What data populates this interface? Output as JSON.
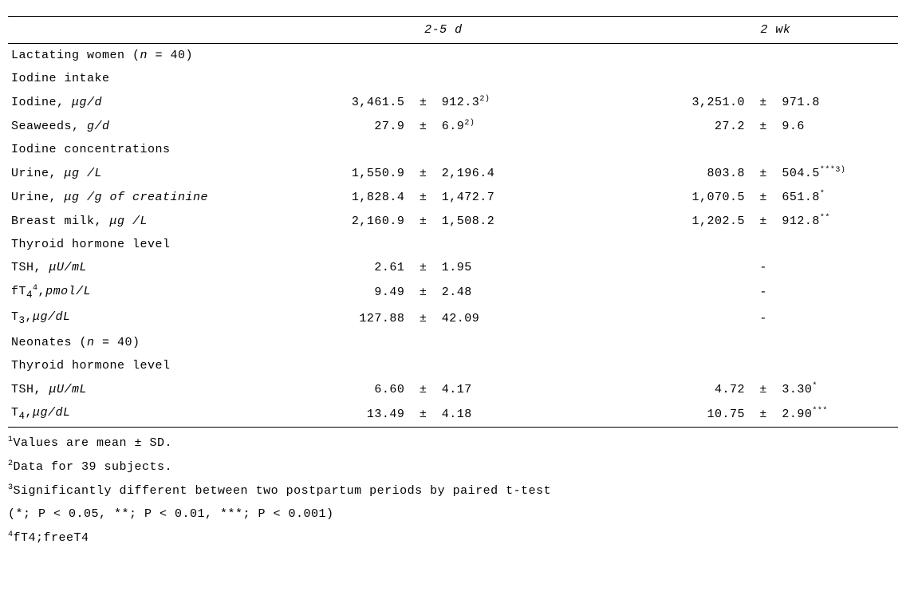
{
  "headers": {
    "col1": "2-5 d",
    "col2": "2 wk"
  },
  "sections": {
    "lactating": {
      "title": "Lactating  women (",
      "n": "n",
      "nval": " = 40)",
      "iodine_intake": "Iodine intake",
      "iodine_conc": "Iodine concentrations",
      "thyroid": "Thyroid hormone  level"
    },
    "neonates": {
      "title": "Neonates  (",
      "n": "n",
      "nval": " = 40)",
      "thyroid": "Thyroid hormone  level"
    }
  },
  "rows": {
    "iodine": {
      "label": "Iodine, ",
      "unit": "μg/d",
      "m1": "3,461.5",
      "s1": "912.3",
      "sup1": "2)",
      "m2": "3,251.0",
      "s2": "971.8",
      "sup2": ""
    },
    "seaweeds": {
      "label": "Seaweeds, ",
      "unit": "g/d",
      "m1": "27.9",
      "s1": "6.9",
      "sup1": "2)",
      "m2": "27.2",
      "s2": "9.6",
      "sup2": ""
    },
    "urineL": {
      "label": "Urine, ",
      "unit": "μg /L",
      "m1": "1,550.9",
      "s1": "2,196.4",
      "sup1": "",
      "m2": "803.8",
      "s2": "504.5",
      "sup2": "***3)"
    },
    "urineC": {
      "label": "Urine, ",
      "unit": "μg /g of creatinine",
      "m1": "1,828.4",
      "s1": "1,472.7",
      "sup1": "",
      "m2": "1,070.5",
      "s2": "651.8",
      "sup2": "*"
    },
    "milk": {
      "label": "Breast milk, ",
      "unit": "μg /L",
      "m1": "2,160.9",
      "s1": "1,508.2",
      "sup1": "",
      "m2": "1,202.5",
      "s2": "912.8",
      "sup2": "**"
    },
    "tshL": {
      "label": "TSH, ",
      "unit": "μU/mL",
      "m1": "2.61",
      "s1": "1.95",
      "sup1": "",
      "m2": "-",
      "s2": "",
      "sup2": ""
    },
    "ft4": {
      "label_a": "fT",
      "sub": "4",
      "sup": "4",
      "label_b": ",",
      "unit": "pmol/L",
      "m1": "9.49",
      "s1": "2.48",
      "sup1": "",
      "m2": "-",
      "s2": "",
      "sup2": ""
    },
    "t3": {
      "label_a": "T",
      "sub": "3",
      "label_b": ",",
      "unit": "μg/dL",
      "m1": "127.88",
      "s1": "42.09",
      "sup1": "",
      "m2": "-",
      "s2": "",
      "sup2": ""
    },
    "tshN": {
      "label": "TSH, ",
      "unit": "μU/mL",
      "m1": "6.60",
      "s1": "4.17",
      "sup1": "",
      "m2": "4.72",
      "s2": "3.30",
      "sup2": "*"
    },
    "t4": {
      "label_a": "T",
      "sub": "4",
      "label_b": ",",
      "unit": "μg/dL",
      "m1": "13.49",
      "s1": "4.18",
      "sup1": "",
      "m2": "10.75",
      "s2": "2.90",
      "sup2": "***"
    }
  },
  "pm": "±",
  "footnotes": {
    "f1": "Values are mean ± SD.",
    "f2": "Data for 39 subjects.",
    "f3": "Significantly different between two postpartum periods by paired t-test",
    "f3b": "(*; P < 0.05, **; P < 0.01, ***; P < 0.001)",
    "f4": "fT4;freeT4"
  }
}
